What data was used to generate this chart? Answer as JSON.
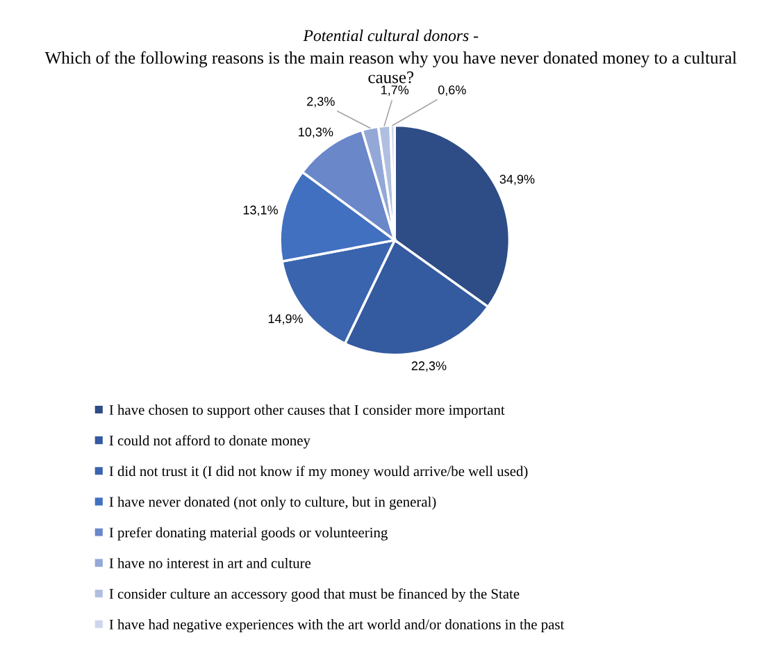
{
  "chart_data": {
    "type": "pie",
    "title": "Potential cultural donors -",
    "subtitle": "Which of the following reasons is the main reason why you have never donated money to a cultural cause?",
    "categories": [
      "I have chosen to support other causes that I consider more important",
      "I could not afford to donate money",
      "I did not trust it (I did not know if my money would arrive/be well used)",
      "I have never donated (not only to culture, but in general)",
      "I prefer donating material goods or volunteering",
      "I have no interest in art and culture",
      "I consider culture an accessory good that must be financed by the State",
      "I have had negative experiences with the art world and/or donations in the past"
    ],
    "values": [
      34.9,
      22.3,
      14.9,
      13.1,
      10.3,
      2.3,
      1.7,
      0.6
    ],
    "value_labels": [
      "34,9%",
      "22,3%",
      "14,9%",
      "13,1%",
      "10,3%",
      "2,3%",
      "1,7%",
      "0,6%"
    ],
    "colors": [
      "#2e4d87",
      "#345a9f",
      "#3a64ad",
      "#4170c0",
      "#6a87c9",
      "#93a8d6",
      "#b0bfe0",
      "#cdd6ec"
    ],
    "legend": "bottom"
  }
}
